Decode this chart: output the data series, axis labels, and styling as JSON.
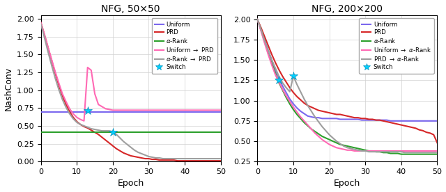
{
  "title1": "NFG, 50×50",
  "title2": "NFG, 200×200",
  "xlabel": "Epoch",
  "ylabel": "NashConv",
  "xlim": [
    0,
    50
  ],
  "ylim1": [
    0.0,
    2.05
  ],
  "ylim2": [
    0.25,
    2.05
  ],
  "yticks1": [
    0.0,
    0.25,
    0.5,
    0.75,
    1.0,
    1.25,
    1.5,
    1.75,
    2.0
  ],
  "yticks2": [
    0.25,
    0.5,
    0.75,
    1.0,
    1.25,
    1.5,
    1.75,
    2.0
  ],
  "xticks": [
    0,
    10,
    20,
    30,
    40,
    50
  ],
  "colors": {
    "uniform": "#7B68EE",
    "prd": "#D62728",
    "alpha_rank": "#2CA02C",
    "uniform_hybrid": "#FF69B4",
    "alpha_hybrid": "#9E9E9E",
    "switch": "#00CFFF"
  },
  "plot1": {
    "uniform_flat": 0.695,
    "alpha_rank_flat": 0.415,
    "prd": [
      1.95,
      1.78,
      1.6,
      1.42,
      1.24,
      1.07,
      0.92,
      0.8,
      0.7,
      0.62,
      0.56,
      0.52,
      0.49,
      0.47,
      0.44,
      0.41,
      0.38,
      0.34,
      0.3,
      0.26,
      0.22,
      0.18,
      0.15,
      0.12,
      0.1,
      0.08,
      0.07,
      0.06,
      0.05,
      0.04,
      0.04,
      0.03,
      0.03,
      0.02,
      0.02,
      0.02,
      0.02,
      0.02,
      0.01,
      0.01,
      0.01,
      0.01,
      0.01,
      0.01,
      0.01,
      0.01,
      0.01,
      0.01,
      0.01,
      0.01,
      0.01
    ],
    "uniform_prd_phase1": {
      "x_end": 13,
      "y": [
        1.95,
        1.78,
        1.6,
        1.43,
        1.26,
        1.1,
        0.95,
        0.84,
        0.74,
        0.67,
        0.62,
        0.59,
        0.57,
        0.56
      ]
    },
    "uniform_prd_phase2": {
      "x_start": 13,
      "y_start": 1.32,
      "y_end": 0.8,
      "x_end": 15
    },
    "uniform_prd_flat": 0.72,
    "switch1_x": 13,
    "switch1_y": 0.715,
    "alpha_prd_phase1": {
      "x_end": 20,
      "y": [
        1.93,
        1.74,
        1.54,
        1.35,
        1.17,
        1.01,
        0.87,
        0.76,
        0.67,
        0.6,
        0.55,
        0.52,
        0.5,
        0.48,
        0.46,
        0.45,
        0.44,
        0.43,
        0.43,
        0.43,
        0.42
      ]
    },
    "alpha_prd_flat": 0.04,
    "switch2_x": 20,
    "switch2_y": 0.415
  },
  "plot2": {
    "uniform": [
      2.0,
      1.88,
      1.75,
      1.62,
      1.5,
      1.38,
      1.28,
      1.18,
      1.1,
      1.02,
      0.96,
      0.91,
      0.87,
      0.84,
      0.81,
      0.8,
      0.79,
      0.79,
      0.78,
      0.78,
      0.78,
      0.78,
      0.78,
      0.77,
      0.77,
      0.77,
      0.77,
      0.77,
      0.77,
      0.76,
      0.76,
      0.76,
      0.76,
      0.76,
      0.76,
      0.76,
      0.76,
      0.75,
      0.75,
      0.75,
      0.75,
      0.75,
      0.75,
      0.75,
      0.75,
      0.75,
      0.75,
      0.75,
      0.75,
      0.75,
      0.75
    ],
    "prd": [
      2.0,
      1.9,
      1.79,
      1.68,
      1.57,
      1.47,
      1.38,
      1.3,
      1.23,
      1.16,
      1.1,
      1.05,
      1.01,
      0.97,
      0.94,
      0.92,
      0.9,
      0.88,
      0.87,
      0.86,
      0.85,
      0.84,
      0.83,
      0.83,
      0.82,
      0.81,
      0.8,
      0.79,
      0.79,
      0.78,
      0.78,
      0.77,
      0.77,
      0.76,
      0.76,
      0.75,
      0.74,
      0.73,
      0.72,
      0.71,
      0.7,
      0.69,
      0.68,
      0.67,
      0.66,
      0.64,
      0.63,
      0.61,
      0.6,
      0.58,
      0.48
    ],
    "alpha_rank": [
      2.0,
      1.87,
      1.73,
      1.59,
      1.46,
      1.34,
      1.22,
      1.13,
      1.04,
      0.96,
      0.89,
      0.83,
      0.78,
      0.73,
      0.69,
      0.65,
      0.62,
      0.59,
      0.56,
      0.54,
      0.52,
      0.5,
      0.48,
      0.46,
      0.45,
      0.44,
      0.43,
      0.42,
      0.41,
      0.4,
      0.39,
      0.38,
      0.38,
      0.37,
      0.37,
      0.36,
      0.36,
      0.35,
      0.35,
      0.35,
      0.34,
      0.34,
      0.34,
      0.34,
      0.34,
      0.34,
      0.34,
      0.34,
      0.34,
      0.34,
      0.34
    ],
    "uniform_alpha_phase1": {
      "x_end": 6,
      "y": [
        2.0,
        1.86,
        1.71,
        1.57,
        1.44,
        1.32,
        1.23
      ]
    },
    "uniform_alpha_flat": 0.415,
    "switch1_x": 6,
    "switch1_y": 1.25,
    "prd_alpha_phase1": {
      "x_end": 10,
      "y": [
        2.0,
        1.88,
        1.75,
        1.62,
        1.5,
        1.39,
        1.3,
        1.22,
        1.16,
        1.3,
        1.3
      ]
    },
    "prd_alpha_flat": 0.355,
    "switch2_x": 10,
    "switch2_y": 1.305
  }
}
